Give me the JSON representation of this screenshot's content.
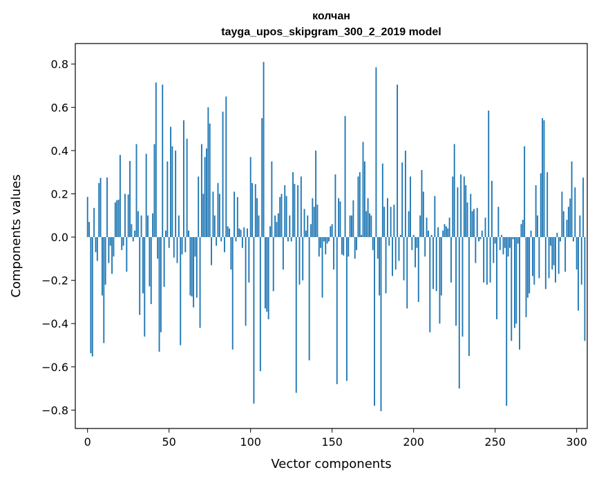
{
  "chart_data": {
    "type": "bar",
    "title": "колчан",
    "subtitle": "tayga_upos_skipgram_300_2_2019 model",
    "xlabel": "Vector components",
    "ylabel": "Components values",
    "xlim": [
      -7.5,
      306.5
    ],
    "ylim": [
      -0.885,
      0.895
    ],
    "x_ticks": [
      0,
      50,
      100,
      150,
      200,
      250,
      300
    ],
    "x_tick_labels": [
      "0",
      "50",
      "100",
      "150",
      "200",
      "250",
      "300"
    ],
    "y_ticks": [
      -0.8,
      -0.6,
      -0.4,
      -0.2,
      0.0,
      0.2,
      0.4,
      0.6,
      0.8
    ],
    "y_tick_labels": [
      "−0.8",
      "−0.6",
      "−0.4",
      "−0.2",
      "0.0",
      "0.2",
      "0.4",
      "0.6",
      "0.8"
    ],
    "bar_color": "#1f77b4",
    "values": [
      0.186,
      0.07,
      -0.537,
      -0.552,
      0.135,
      -0.07,
      -0.11,
      0.25,
      0.274,
      -0.27,
      -0.49,
      -0.22,
      0.276,
      -0.12,
      -0.04,
      -0.17,
      -0.09,
      0.16,
      0.17,
      0.173,
      0.38,
      -0.06,
      -0.04,
      0.2,
      -0.16,
      0.197,
      0.352,
      0.06,
      -0.02,
      0.03,
      0.43,
      0.12,
      -0.36,
      0.1,
      -0.26,
      -0.46,
      0.385,
      0.1,
      -0.228,
      -0.31,
      0.11,
      0.43,
      0.715,
      -0.1,
      -0.53,
      -0.44,
      0.705,
      -0.23,
      0.03,
      0.35,
      -0.05,
      0.51,
      0.42,
      -0.095,
      0.4,
      -0.12,
      0.1,
      -0.5,
      -0.08,
      0.54,
      -0.07,
      0.455,
      0.03,
      -0.27,
      -0.275,
      -0.325,
      -0.09,
      -0.28,
      0.28,
      -0.42,
      0.43,
      0.2,
      0.37,
      0.41,
      0.6,
      0.525,
      -0.13,
      0.21,
      0.1,
      -0.04,
      0.25,
      0.2,
      -0.02,
      0.58,
      -0.07,
      0.65,
      0.05,
      0.04,
      -0.15,
      -0.52,
      0.21,
      -0.02,
      0.185,
      0.04,
      0.034,
      -0.05,
      0.045,
      -0.41,
      0.04,
      -0.21,
      0.37,
      0.25,
      -0.77,
      0.245,
      0.18,
      0.1,
      -0.62,
      0.55,
      0.81,
      -0.33,
      -0.345,
      -0.38,
      0.05,
      0.35,
      -0.25,
      0.1,
      0.07,
      0.11,
      0.185,
      0.2,
      -0.15,
      0.24,
      0.19,
      -0.02,
      0.1,
      -0.02,
      0.3,
      0.246,
      -0.72,
      0.24,
      -0.22,
      0.28,
      -0.2,
      0.13,
      0.03,
      0.1,
      -0.57,
      0.06,
      0.18,
      0.14,
      0.4,
      0.15,
      -0.09,
      -0.05,
      -0.28,
      -0.02,
      -0.08,
      -0.03,
      -0.02,
      0.05,
      0.06,
      -0.15,
      0.29,
      -0.68,
      0.18,
      0.165,
      -0.08,
      -0.085,
      0.56,
      -0.665,
      -0.09,
      0.1,
      0.1,
      0.17,
      -0.1,
      -0.06,
      0.28,
      0.3,
      0.01,
      0.44,
      0.35,
      0.12,
      0.18,
      0.11,
      0.1,
      -0.06,
      -0.78,
      0.785,
      -0.1,
      -0.27,
      -0.805,
      0.34,
      0.14,
      -0.26,
      0.18,
      -0.04,
      0.14,
      -0.18,
      0.15,
      -0.15,
      0.705,
      -0.11,
      0.01,
      0.345,
      -0.2,
      0.4,
      -0.33,
      0.12,
      0.28,
      -0.06,
      0.01,
      -0.14,
      -0.05,
      -0.3,
      0.1,
      0.31,
      0.21,
      -0.09,
      0.09,
      0.03,
      -0.44,
      0.01,
      -0.24,
      0.19,
      -0.25,
      0.045,
      -0.4,
      -0.27,
      0.03,
      0.06,
      0.05,
      0.04,
      0.09,
      -0.21,
      0.28,
      0.43,
      -0.41,
      0.23,
      -0.7,
      0.29,
      -0.46,
      0.28,
      0.24,
      0.16,
      -0.55,
      0.2,
      0.12,
      0.13,
      -0.12,
      0.135,
      -0.02,
      -0.01,
      0.03,
      -0.21,
      0.09,
      -0.22,
      0.585,
      -0.21,
      0.26,
      -0.12,
      -0.03,
      -0.38,
      0.14,
      -0.06,
      0.01,
      -0.08,
      -0.05,
      -0.78,
      -0.09,
      -0.05,
      -0.48,
      -0.01,
      -0.42,
      -0.4,
      -0.03,
      -0.52,
      0.06,
      0.08,
      0.42,
      -0.37,
      -0.28,
      -0.26,
      0.03,
      -0.18,
      -0.22,
      0.24,
      0.1,
      -0.19,
      0.295,
      0.55,
      0.54,
      -0.24,
      0.3,
      -0.19,
      -0.04,
      -0.15,
      -0.13,
      -0.21,
      0.02,
      -0.17,
      -0.02,
      0.21,
      0.12,
      -0.16,
      0.08,
      0.14,
      0.178,
      0.35,
      -0.02,
      0.23,
      -0.15,
      -0.34,
      0.1,
      -0.22,
      0.275,
      -0.48
    ]
  }
}
